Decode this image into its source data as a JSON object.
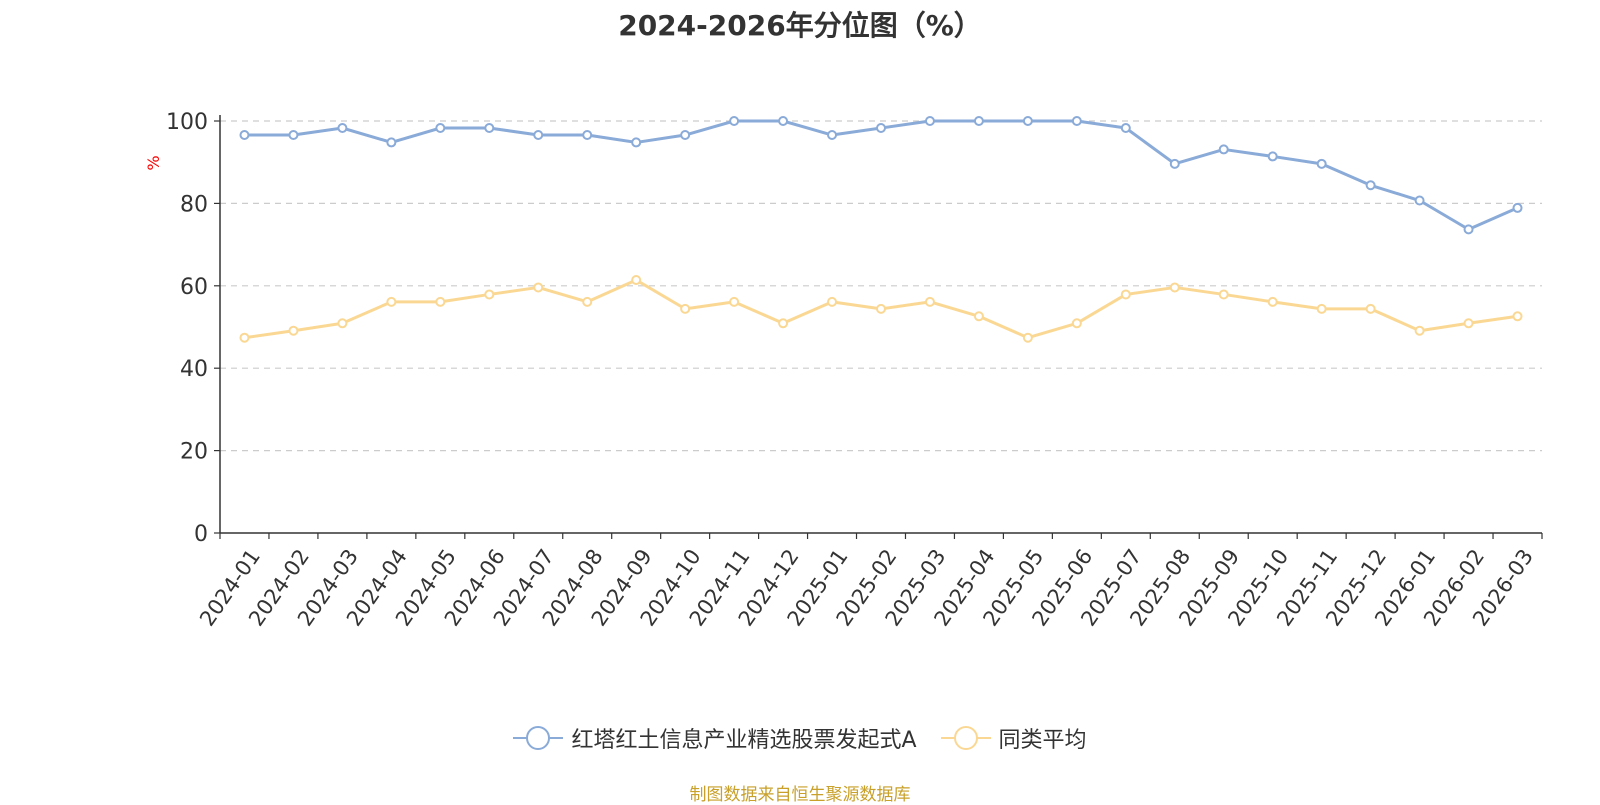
{
  "chart_data": {
    "type": "line",
    "title": "2024-2026年分位图（%）",
    "ylabel": "%",
    "ylim": [
      0,
      100
    ],
    "yticks": [
      0,
      20,
      40,
      60,
      80,
      100
    ],
    "grid": true,
    "legend_position": "bottom",
    "categories": [
      "2024-01",
      "2024-02",
      "2024-03",
      "2024-04",
      "2024-05",
      "2024-06",
      "2024-07",
      "2024-08",
      "2024-09",
      "2024-10",
      "2024-11",
      "2024-12",
      "2025-01",
      "2025-02",
      "2025-03",
      "2025-04",
      "2025-05",
      "2025-06",
      "2025-07",
      "2025-08",
      "2025-09",
      "2025-10",
      "2025-11",
      "2025-12",
      "2026-01",
      "2026-02",
      "2026-03"
    ],
    "series": [
      {
        "name": "红塔红土信息产业精选股票发起式A",
        "color": "#8aaad8",
        "values": [
          96.6,
          96.6,
          98.3,
          94.8,
          98.3,
          98.3,
          96.6,
          96.6,
          94.8,
          96.6,
          100,
          100,
          96.6,
          98.3,
          100,
          100,
          100,
          100,
          98.3,
          89.6,
          93.1,
          91.4,
          89.6,
          84.4,
          80.7,
          73.7,
          78.9
        ]
      },
      {
        "name": "同类平均",
        "color": "#fad894",
        "values": [
          47.4,
          49.1,
          50.9,
          56.1,
          56.1,
          57.9,
          59.6,
          56.1,
          61.4,
          54.4,
          56.1,
          50.9,
          56.1,
          54.4,
          56.1,
          52.6,
          47.4,
          50.9,
          57.9,
          59.6,
          57.9,
          56.1,
          54.4,
          54.4,
          49.1,
          50.9,
          52.6
        ]
      }
    ]
  },
  "source_note": "制图数据来自恒生聚源数据库",
  "colors": {
    "axis": "#333333",
    "grid": "#cccccc",
    "ylabel": "#ff0000",
    "source": "#c8a02a"
  }
}
